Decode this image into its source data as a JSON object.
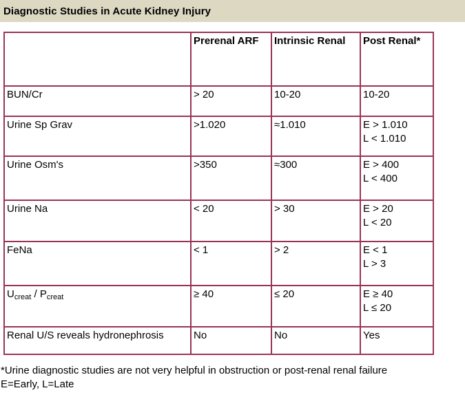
{
  "title": "Diagnostic Studies in Acute Kidney Injury",
  "colors": {
    "border": "#993356",
    "title_background": "#dcd8c2",
    "text": "#000000"
  },
  "table": {
    "columns": [
      "",
      "Prerenal ARF",
      "Intrinsic Renal",
      "Post Renal*"
    ],
    "rows": [
      {
        "label_segments": [
          {
            "text": "BUN/Cr"
          }
        ],
        "values": [
          "> 20",
          "10-20",
          "10-20"
        ]
      },
      {
        "label_segments": [
          {
            "text": "Urine Sp Grav"
          }
        ],
        "values": [
          ">1.020",
          "≈1.010",
          "E > 1.010\nL < 1.010"
        ]
      },
      {
        "label_segments": [
          {
            "text": "Urine Osm's"
          }
        ],
        "values": [
          ">350",
          "≈300",
          "E > 400\nL < 400"
        ]
      },
      {
        "label_segments": [
          {
            "text": "Urine Na"
          }
        ],
        "values": [
          "< 20",
          "> 30",
          "E > 20\nL < 20"
        ]
      },
      {
        "label_segments": [
          {
            "text": "FeNa"
          }
        ],
        "values": [
          "< 1",
          "> 2",
          "E < 1\nL > 3"
        ]
      },
      {
        "label_segments": [
          {
            "text": "U"
          },
          {
            "text": "creat",
            "sub": true
          },
          {
            "text": " / P"
          },
          {
            "text": "creat",
            "sub": true
          }
        ],
        "values": [
          "≥ 40",
          "≤ 20",
          "E ≥ 40\nL ≤ 20"
        ]
      },
      {
        "label_segments": [
          {
            "text": "Renal U/S reveals hydronephrosis"
          }
        ],
        "values": [
          "No",
          "No",
          "Yes"
        ]
      }
    ]
  },
  "footnotes": [
    "*Urine diagnostic studies are not very helpful in obstruction or post-renal renal failure",
    "E=Early, L=Late"
  ]
}
